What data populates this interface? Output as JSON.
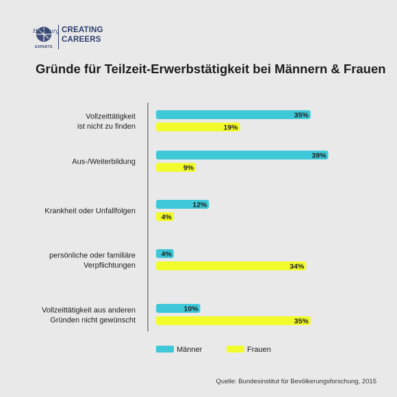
{
  "logo": {
    "script_text": "Hamburg",
    "sub_text": "EXPERTS",
    "line1": "CREATING",
    "line2": "CAREERS"
  },
  "title": "Gründe für Teilzeit-Erwerbstätigkeit bei Männern & Frauen",
  "source": "Quelle: Bundesinstitut für Bevölkerungsforschung, 2015",
  "colors": {
    "maenner": "#3ec8d8",
    "frauen": "#f2fb2b",
    "axis": "#444444",
    "text": "#1c1c1c",
    "background": "#e9e9e9"
  },
  "chart_data": {
    "type": "bar",
    "orientation": "horizontal",
    "categories": [
      [
        "Vollzeittätigkeit",
        "ist nicht zu finden"
      ],
      [
        "Aus-/Weiterbildung"
      ],
      [
        "Krankheit oder Unfallfolgen"
      ],
      [
        "persönliche oder familiäre",
        "Verpflichtungen"
      ],
      [
        "Vollzeittätigkeit aus anderen",
        "Gründen nicht gewünscht"
      ]
    ],
    "series": [
      {
        "name": "Männer",
        "color": "#3ec8d8",
        "values": [
          35,
          39,
          12,
          4,
          10
        ],
        "labels": [
          "35%",
          "39%",
          "12%",
          "4%",
          "10%"
        ]
      },
      {
        "name": "Frauen",
        "color": "#f2fb2b",
        "values": [
          19,
          9,
          4,
          34,
          35
        ],
        "labels": [
          "19%",
          "9%",
          "4%",
          "34%",
          "35%"
        ]
      }
    ],
    "xlim": [
      0,
      40
    ],
    "grid": false,
    "legend_position": "bottom"
  }
}
